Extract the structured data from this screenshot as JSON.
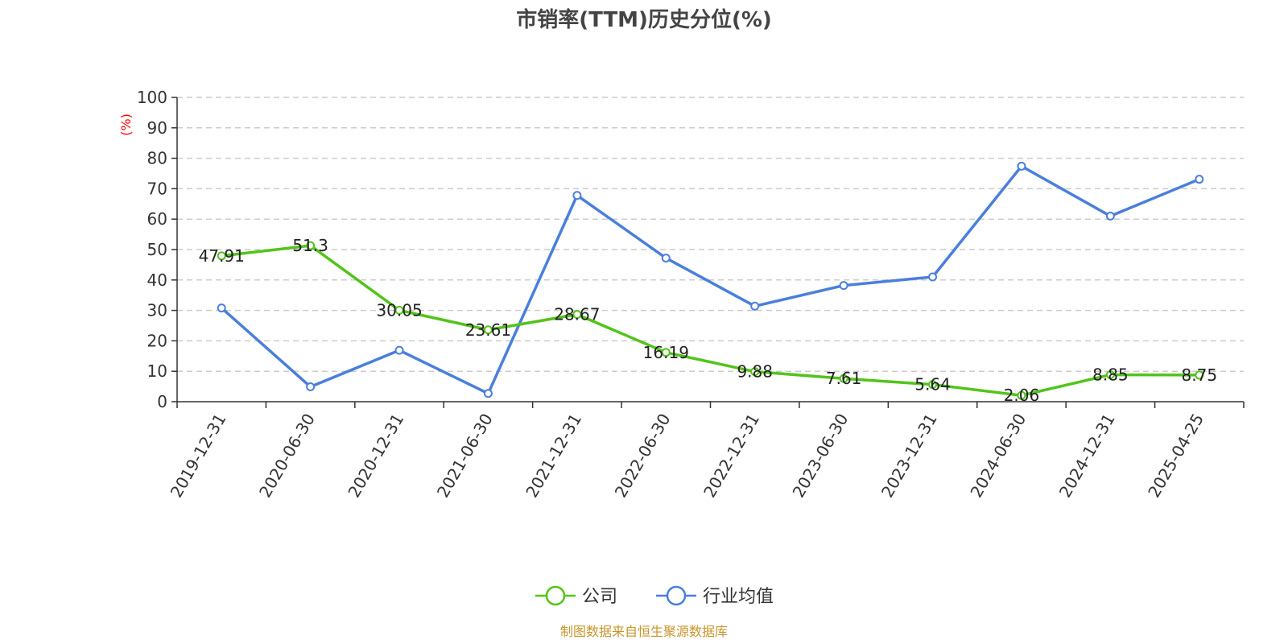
{
  "chart_data": {
    "type": "line",
    "title": "市销率(TTM)历史分位(%)",
    "ylabel": "(%)",
    "ylim": [
      0,
      100
    ],
    "yticks": [
      0,
      10,
      20,
      30,
      40,
      50,
      60,
      70,
      80,
      90,
      100
    ],
    "grid": true,
    "legend_position": "bottom-center",
    "categories": [
      "2019-12-31",
      "2020-06-30",
      "2020-12-31",
      "2021-06-30",
      "2021-12-31",
      "2022-06-30",
      "2022-12-31",
      "2023-06-30",
      "2023-12-31",
      "2024-06-30",
      "2024-12-31",
      "2025-04-25"
    ],
    "series": [
      {
        "name": "公司",
        "color": "#52c41a",
        "show_labels": true,
        "values": [
          47.91,
          51.3,
          30.05,
          23.61,
          28.67,
          16.19,
          9.88,
          7.61,
          5.64,
          2.06,
          8.85,
          8.75
        ],
        "labels": [
          "47.91",
          "51.3",
          "30.05",
          "23.61",
          "28.67",
          "16.19",
          "9.88",
          "7.61",
          "5.64",
          "2.06",
          "8.85",
          "8.75"
        ]
      },
      {
        "name": "行业均值",
        "color": "#4a7fdc",
        "show_labels": false,
        "values": [
          30.8,
          4.9,
          16.9,
          2.7,
          67.8,
          47.2,
          31.4,
          38.2,
          41.0,
          77.4,
          61.0,
          73.1
        ]
      }
    ],
    "axis_color": "#333333",
    "grid_color": "#cccccc",
    "unit_color": "#ff0000",
    "source_color": "#c8952b"
  },
  "source": "制图数据来自恒生聚源数据库"
}
